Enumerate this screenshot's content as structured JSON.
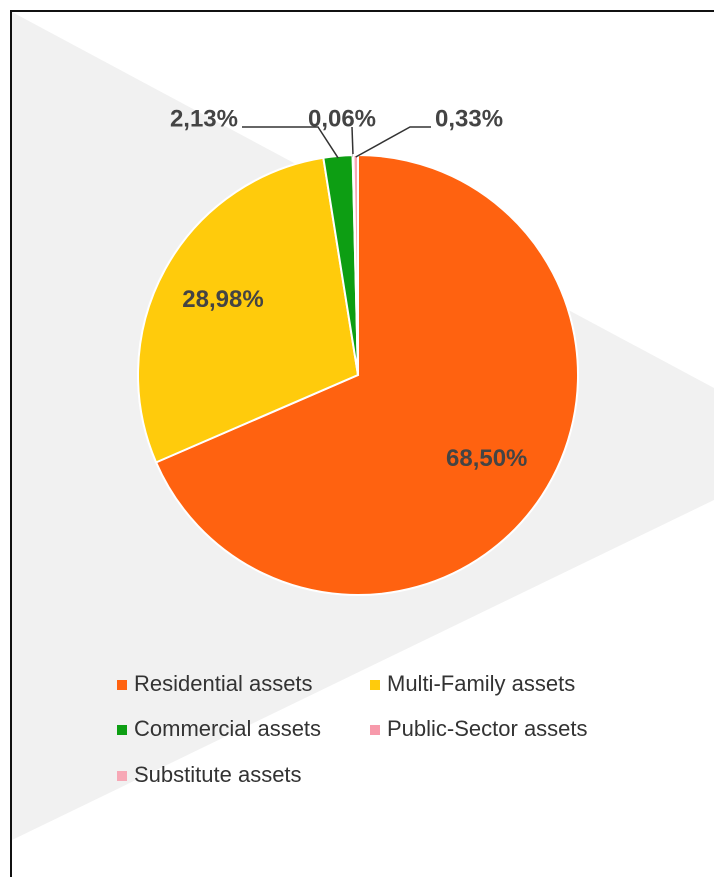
{
  "chart_data": {
    "type": "pie",
    "categories": [
      "Residential assets",
      "Multi-Family assets",
      "Commercial assets",
      "Public-Sector assets",
      "Substitute assets"
    ],
    "values": [
      68.5,
      28.98,
      2.13,
      0.06,
      0.33
    ],
    "value_labels": [
      "68,50%",
      "28,98%",
      "2,13%",
      "0,06%",
      "0,33%"
    ],
    "colors": [
      "#ff6210",
      "#ffcb0c",
      "#0d9e13",
      "#f79aab",
      "#f7a8b6"
    ],
    "legend": "bottom"
  }
}
